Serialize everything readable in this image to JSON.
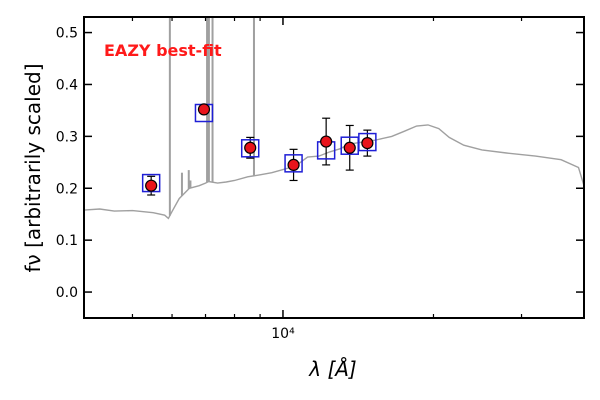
{
  "chart_data": {
    "type": "scatter",
    "title": "",
    "annotation": "EAZY best-fit",
    "xlabel": "λ [Å]",
    "ylabel": "fν [arbitrarily scaled]",
    "x_scale": "log",
    "xlim": [
      4000,
      40000
    ],
    "ylim": [
      -0.05,
      0.53
    ],
    "y_ticks": [
      0.0,
      0.1,
      0.2,
      0.3,
      0.4,
      0.5
    ],
    "y_tick_labels": [
      "0.0",
      "0.1",
      "0.2",
      "0.3",
      "0.4",
      "0.5"
    ],
    "x_tick_major": [
      10000
    ],
    "x_tick_major_label": "10⁴",
    "x_tick_minor": [
      5000,
      6000,
      7000,
      8000,
      9000,
      20000,
      30000
    ],
    "grid": false,
    "colors": {
      "template": "#a0a0a0",
      "point_fill": "#e8141b",
      "model_square": "#1f1fd6",
      "annotation": "#ff1a1a",
      "axis": "#000000"
    },
    "series": [
      {
        "name": "Observed photometry",
        "marker": "circle",
        "points": [
          {
            "x": 5450,
            "y": 0.205,
            "err": 0.018
          },
          {
            "x": 6950,
            "y": 0.352,
            "err": 0.0
          },
          {
            "x": 8600,
            "y": 0.278,
            "err": 0.02
          },
          {
            "x": 10500,
            "y": 0.245,
            "err": 0.03
          },
          {
            "x": 12200,
            "y": 0.29,
            "err": 0.045
          },
          {
            "x": 13600,
            "y": 0.278,
            "err": 0.043
          },
          {
            "x": 14750,
            "y": 0.287,
            "err": 0.025
          }
        ]
      },
      {
        "name": "EAZY model fluxes",
        "marker": "square",
        "points": [
          {
            "x": 5450,
            "y": 0.21
          },
          {
            "x": 6950,
            "y": 0.345
          },
          {
            "x": 8600,
            "y": 0.277
          },
          {
            "x": 10500,
            "y": 0.248
          },
          {
            "x": 12200,
            "y": 0.273
          },
          {
            "x": 13600,
            "y": 0.282
          },
          {
            "x": 14750,
            "y": 0.289
          }
        ]
      },
      {
        "name": "EAZY best-fit template",
        "marker": "line",
        "points": [
          {
            "x": 4000,
            "y": 0.158
          },
          {
            "x": 4300,
            "y": 0.16
          },
          {
            "x": 4600,
            "y": 0.156
          },
          {
            "x": 5000,
            "y": 0.157
          },
          {
            "x": 5500,
            "y": 0.153
          },
          {
            "x": 5800,
            "y": 0.148
          },
          {
            "x": 5900,
            "y": 0.142
          },
          {
            "x": 6000,
            "y": 0.155
          },
          {
            "x": 6200,
            "y": 0.18
          },
          {
            "x": 6500,
            "y": 0.2
          },
          {
            "x": 6800,
            "y": 0.205
          },
          {
            "x": 7000,
            "y": 0.21
          },
          {
            "x": 7100,
            "y": 0.213
          },
          {
            "x": 7400,
            "y": 0.21
          },
          {
            "x": 7700,
            "y": 0.212
          },
          {
            "x": 8000,
            "y": 0.215
          },
          {
            "x": 8500,
            "y": 0.222
          },
          {
            "x": 9000,
            "y": 0.226
          },
          {
            "x": 9500,
            "y": 0.23
          },
          {
            "x": 10000,
            "y": 0.236
          },
          {
            "x": 10600,
            "y": 0.243
          },
          {
            "x": 11200,
            "y": 0.26
          },
          {
            "x": 11800,
            "y": 0.262
          },
          {
            "x": 12400,
            "y": 0.27
          },
          {
            "x": 13000,
            "y": 0.276
          },
          {
            "x": 13600,
            "y": 0.285
          },
          {
            "x": 14200,
            "y": 0.288
          },
          {
            "x": 14800,
            "y": 0.29
          },
          {
            "x": 15500,
            "y": 0.294
          },
          {
            "x": 16500,
            "y": 0.3
          },
          {
            "x": 17500,
            "y": 0.31
          },
          {
            "x": 18500,
            "y": 0.32
          },
          {
            "x": 19500,
            "y": 0.322
          },
          {
            "x": 20500,
            "y": 0.315
          },
          {
            "x": 21500,
            "y": 0.298
          },
          {
            "x": 23000,
            "y": 0.283
          },
          {
            "x": 25000,
            "y": 0.274
          },
          {
            "x": 28000,
            "y": 0.268
          },
          {
            "x": 32000,
            "y": 0.262
          },
          {
            "x": 36000,
            "y": 0.255
          },
          {
            "x": 39000,
            "y": 0.24
          },
          {
            "x": 40000,
            "y": 0.205
          }
        ],
        "emission_lines": [
          {
            "x": 5940,
            "top": 0.53
          },
          {
            "x": 6280,
            "top": 0.23
          },
          {
            "x": 6480,
            "top": 0.235
          },
          {
            "x": 6530,
            "top": 0.215
          },
          {
            "x": 7050,
            "top": 0.53
          },
          {
            "x": 7110,
            "top": 0.53
          },
          {
            "x": 7230,
            "top": 0.53
          },
          {
            "x": 8750,
            "top": 0.53
          }
        ]
      }
    ]
  }
}
